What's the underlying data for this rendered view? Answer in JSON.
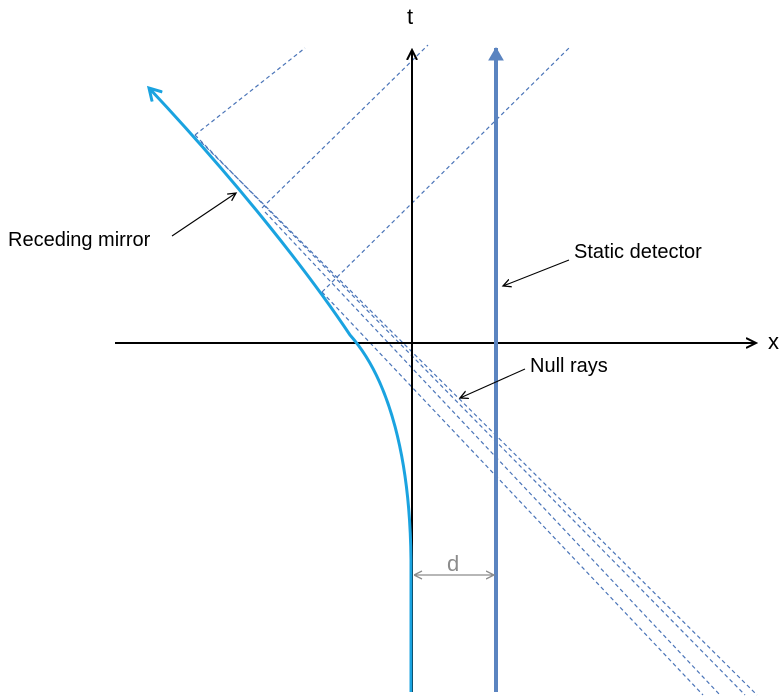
{
  "axes": {
    "x_label": "x",
    "t_label": "t"
  },
  "labels": {
    "mirror": "Receding mirror",
    "detector": "Static detector",
    "null_rays": "Null rays",
    "distance": "d"
  },
  "colors": {
    "axis": "#000000",
    "mirror": "#1aa3e0",
    "detector": "#5b84c0",
    "null_rays": "#4a74b8",
    "distance_marker": "#8c8c8c"
  }
}
